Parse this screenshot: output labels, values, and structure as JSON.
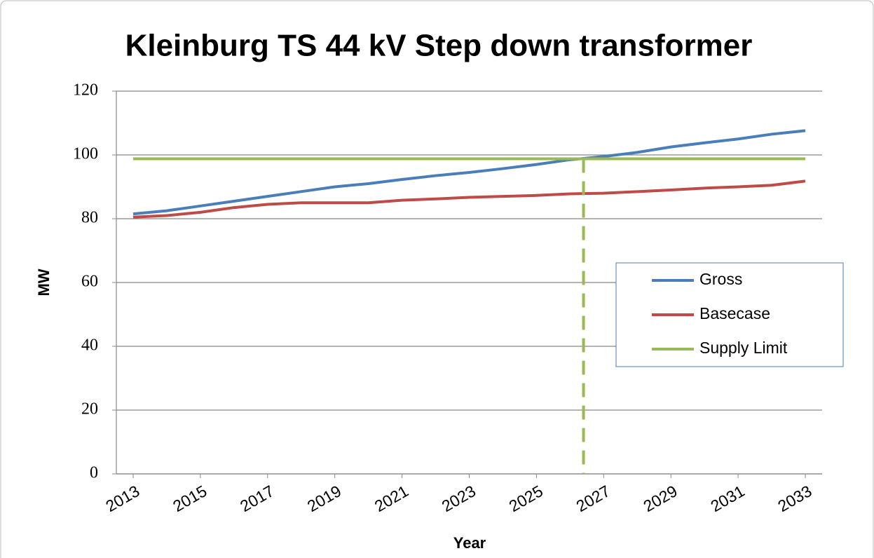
{
  "chart_data": {
    "type": "line",
    "title": "Kleinburg TS 44 kV Step down transformer",
    "x_label": "Year",
    "y_label": "MW",
    "x": [
      2013,
      2014,
      2015,
      2016,
      2017,
      2018,
      2019,
      2020,
      2021,
      2022,
      2023,
      2024,
      2025,
      2026,
      2027,
      2028,
      2029,
      2030,
      2031,
      2032,
      2033
    ],
    "xlim": [
      2012.5,
      2033.5
    ],
    "xticks": [
      2013,
      2015,
      2017,
      2019,
      2021,
      2023,
      2025,
      2027,
      2029,
      2031,
      2033
    ],
    "ylim": [
      0,
      120
    ],
    "yticks": [
      0,
      20,
      40,
      60,
      80,
      100,
      120
    ],
    "grid": true,
    "legend": "right",
    "series": [
      {
        "name": "Gross",
        "color": "#4a7ebb",
        "values": [
          81.5,
          82.5,
          84,
          85.5,
          87,
          88.5,
          90,
          91,
          92.3,
          93.5,
          94.5,
          95.7,
          97,
          98.5,
          99.5,
          100.8,
          102.5,
          103.8,
          105,
          106.5,
          107.6
        ]
      },
      {
        "name": "Basecase",
        "color": "#be4b48",
        "values": [
          80.5,
          81,
          82,
          83.5,
          84.5,
          85,
          85,
          85,
          85.8,
          86.2,
          86.7,
          87,
          87.3,
          87.8,
          88,
          88.5,
          89,
          89.6,
          90,
          90.5,
          91.8
        ]
      },
      {
        "name": "Supply Limit",
        "color": "#98b954",
        "values": [
          98.8,
          98.8,
          98.8,
          98.8,
          98.8,
          98.8,
          98.8,
          98.8,
          98.8,
          98.8,
          98.8,
          98.8,
          98.8,
          98.8,
          98.8,
          98.8,
          98.8,
          98.8,
          98.8,
          98.8,
          98.8
        ]
      }
    ],
    "vertical_line": {
      "x": 2026.4,
      "color": "#98b954"
    }
  }
}
